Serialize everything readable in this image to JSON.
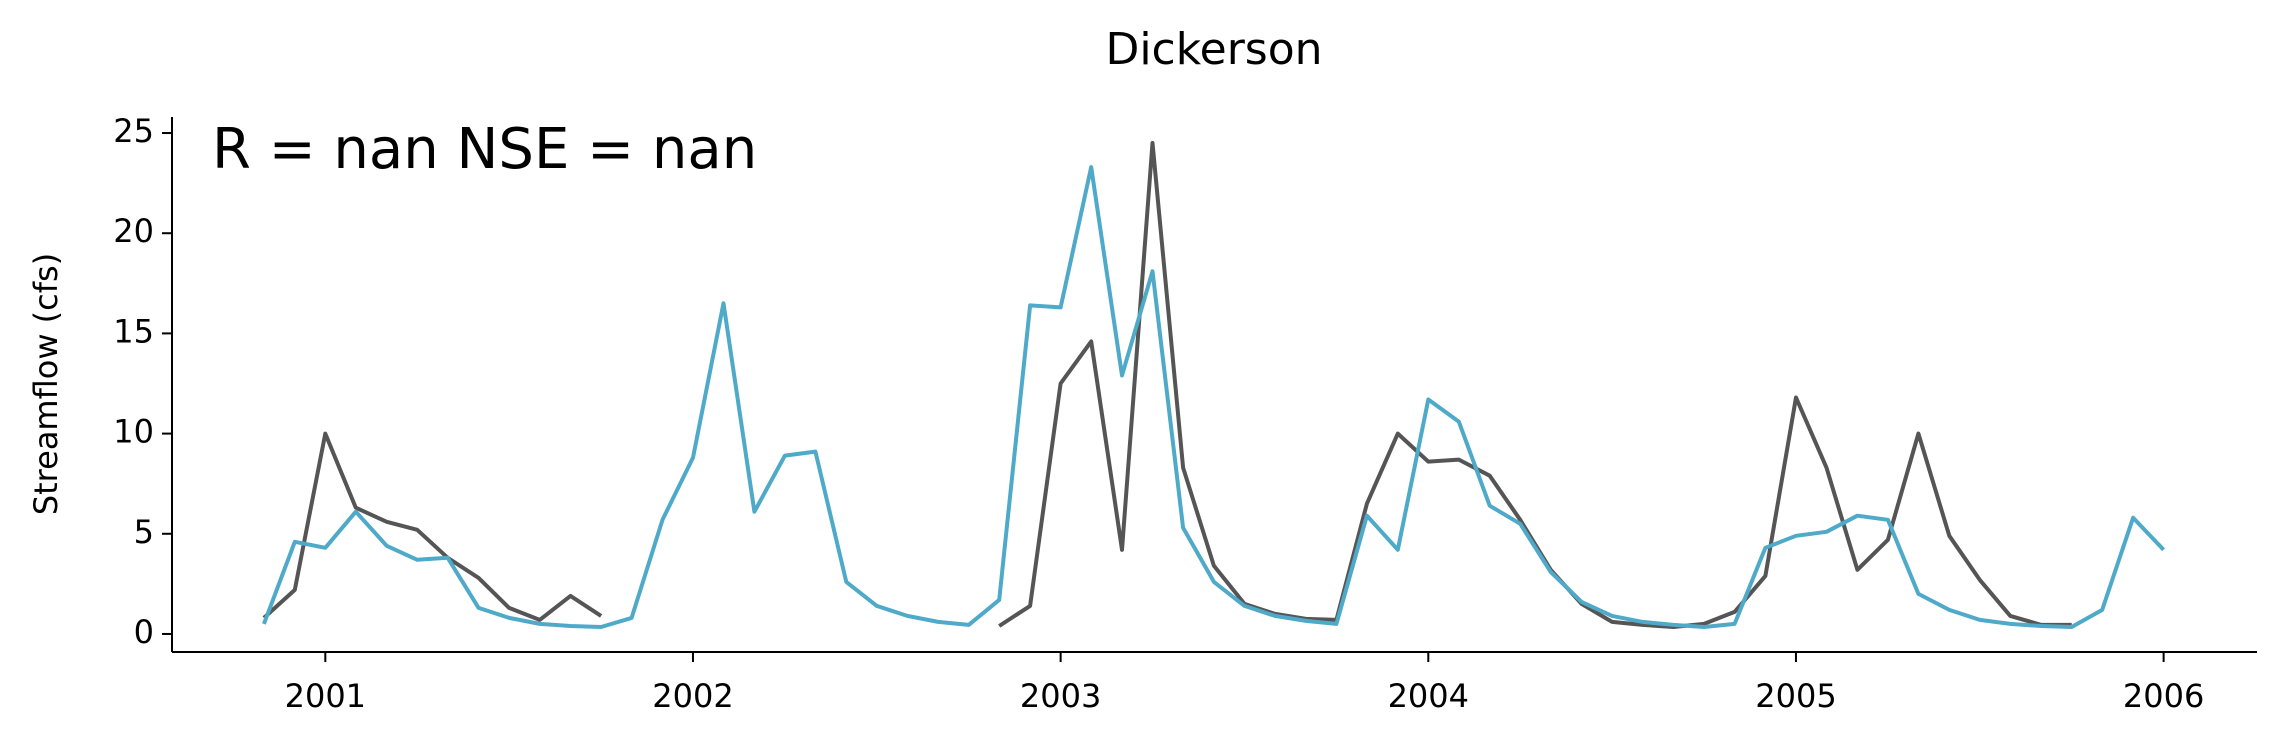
{
  "chart_data": {
    "type": "line",
    "title": "Dickerson",
    "ylabel": "Streamflow (cfs)",
    "annotation": "R = nan  NSE = nan",
    "x": [
      2000.833,
      2000.917,
      2001,
      2001.083,
      2001.167,
      2001.25,
      2001.333,
      2001.417,
      2001.5,
      2001.583,
      2001.667,
      2001.75,
      2001.833,
      2001.917,
      2002,
      2002.083,
      2002.167,
      2002.25,
      2002.333,
      2002.417,
      2002.5,
      2002.583,
      2002.667,
      2002.75,
      2002.833,
      2002.917,
      2003,
      2003.083,
      2003.167,
      2003.25,
      2003.333,
      2003.417,
      2003.5,
      2003.583,
      2003.667,
      2003.75,
      2003.833,
      2003.917,
      2004,
      2004.083,
      2004.167,
      2004.25,
      2004.333,
      2004.417,
      2004.5,
      2004.583,
      2004.667,
      2004.75,
      2004.833,
      2004.917,
      2005,
      2005.083,
      2005.167,
      2005.25,
      2005.333,
      2005.417,
      2005.5,
      2005.583,
      2005.667,
      2005.75,
      2005.833,
      2005.917,
      2006
    ],
    "series": [
      {
        "color": "#555555",
        "values": [
          0.8,
          2.2,
          10.0,
          6.3,
          5.6,
          5.2,
          3.8,
          2.8,
          1.3,
          0.7,
          1.9,
          0.9,
          null,
          null,
          null,
          null,
          null,
          null,
          null,
          null,
          null,
          null,
          null,
          null,
          0.4,
          1.4,
          12.5,
          14.6,
          4.2,
          24.5,
          8.3,
          3.4,
          1.5,
          1.0,
          0.75,
          0.7,
          6.5,
          10.0,
          8.6,
          8.7,
          7.9,
          5.7,
          3.2,
          1.5,
          0.6,
          0.45,
          0.35,
          0.5,
          1.1,
          2.9,
          11.8,
          8.3,
          3.2,
          4.7,
          10.0,
          4.9,
          2.7,
          0.9,
          0.45,
          0.45,
          null,
          null,
          null
        ]
      },
      {
        "color": "#4eaac8",
        "values": [
          0.5,
          4.6,
          4.3,
          6.1,
          4.4,
          3.7,
          3.8,
          1.3,
          0.8,
          0.5,
          0.4,
          0.35,
          0.8,
          5.7,
          8.8,
          16.5,
          6.1,
          8.9,
          9.1,
          2.6,
          1.4,
          0.9,
          0.6,
          0.45,
          1.7,
          16.4,
          16.3,
          23.3,
          12.9,
          18.1,
          5.3,
          2.6,
          1.4,
          0.9,
          0.65,
          0.5,
          5.9,
          4.2,
          11.7,
          10.6,
          6.4,
          5.5,
          3.1,
          1.6,
          0.9,
          0.6,
          0.45,
          0.35,
          0.5,
          4.3,
          4.9,
          5.1,
          5.9,
          5.7,
          2.0,
          1.2,
          0.7,
          0.5,
          0.4,
          0.35,
          1.2,
          5.8,
          4.2
        ]
      }
    ],
    "xlim": [
      2000.583,
      2006.254
    ],
    "xticks": [
      2001,
      2002,
      2003,
      2004,
      2005,
      2006
    ],
    "ylim": [
      -0.9,
      25.8
    ],
    "yticks": [
      0,
      5,
      10,
      15,
      20,
      25
    ],
    "grid": false
  }
}
